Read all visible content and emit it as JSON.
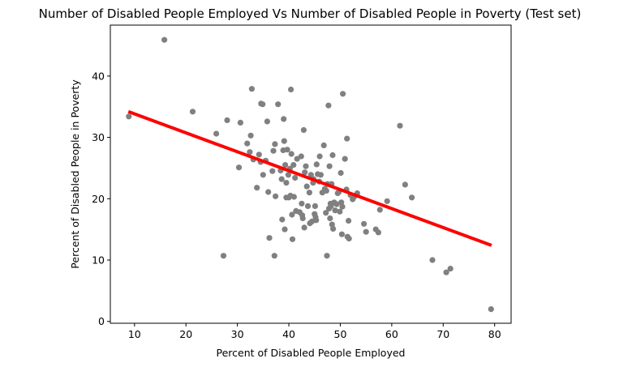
{
  "chart_data": {
    "type": "scatter",
    "title": "Number of Disabled People Employed Vs Number of Disabled People in Poverty (Test set)",
    "xlabel": "Percent of Disabled People Employed",
    "ylabel": "Percent of Disabled People in Poverty",
    "xlim": [
      5.3,
      83.2
    ],
    "ylim": [
      -0.3,
      48.3
    ],
    "xticks": [
      10,
      20,
      30,
      40,
      50,
      60,
      70,
      80
    ],
    "yticks": [
      0,
      10,
      20,
      30,
      40
    ],
    "grid": false,
    "legend": "none",
    "point_color": "#808080",
    "line_color": "#ff0000",
    "points": [
      {
        "x": 8.9,
        "y": 33.4
      },
      {
        "x": 15.8,
        "y": 45.9
      },
      {
        "x": 21.3,
        "y": 34.2
      },
      {
        "x": 25.9,
        "y": 30.6
      },
      {
        "x": 27.3,
        "y": 10.7
      },
      {
        "x": 28.0,
        "y": 32.8
      },
      {
        "x": 30.3,
        "y": 25.1
      },
      {
        "x": 30.6,
        "y": 32.4
      },
      {
        "x": 31.9,
        "y": 29.0
      },
      {
        "x": 32.4,
        "y": 27.6
      },
      {
        "x": 32.6,
        "y": 30.3
      },
      {
        "x": 32.8,
        "y": 37.9
      },
      {
        "x": 33.1,
        "y": 26.4
      },
      {
        "x": 33.8,
        "y": 21.8
      },
      {
        "x": 34.2,
        "y": 27.2
      },
      {
        "x": 34.5,
        "y": 26.0
      },
      {
        "x": 34.6,
        "y": 35.5
      },
      {
        "x": 34.9,
        "y": 35.4
      },
      {
        "x": 35.0,
        "y": 23.9
      },
      {
        "x": 35.5,
        "y": 26.2
      },
      {
        "x": 35.8,
        "y": 32.6
      },
      {
        "x": 36.0,
        "y": 21.1
      },
      {
        "x": 36.2,
        "y": 13.6
      },
      {
        "x": 36.8,
        "y": 24.5
      },
      {
        "x": 37.0,
        "y": 27.8
      },
      {
        "x": 37.3,
        "y": 28.9
      },
      {
        "x": 37.2,
        "y": 10.7
      },
      {
        "x": 37.4,
        "y": 20.4
      },
      {
        "x": 37.9,
        "y": 35.4
      },
      {
        "x": 38.4,
        "y": 24.6
      },
      {
        "x": 38.6,
        "y": 23.2
      },
      {
        "x": 38.7,
        "y": 16.6
      },
      {
        "x": 38.9,
        "y": 27.9
      },
      {
        "x": 39.0,
        "y": 33.0
      },
      {
        "x": 39.1,
        "y": 29.4
      },
      {
        "x": 39.2,
        "y": 15.0
      },
      {
        "x": 39.3,
        "y": 25.5
      },
      {
        "x": 39.5,
        "y": 22.6
      },
      {
        "x": 39.5,
        "y": 20.2
      },
      {
        "x": 39.7,
        "y": 28.0
      },
      {
        "x": 39.9,
        "y": 23.9
      },
      {
        "x": 40.0,
        "y": 20.2
      },
      {
        "x": 40.2,
        "y": 24.9
      },
      {
        "x": 40.3,
        "y": 20.5
      },
      {
        "x": 40.4,
        "y": 37.8
      },
      {
        "x": 40.5,
        "y": 27.3
      },
      {
        "x": 40.6,
        "y": 17.4
      },
      {
        "x": 40.7,
        "y": 13.4
      },
      {
        "x": 40.9,
        "y": 25.5
      },
      {
        "x": 41.0,
        "y": 20.3
      },
      {
        "x": 41.2,
        "y": 23.4
      },
      {
        "x": 41.4,
        "y": 18.0
      },
      {
        "x": 41.6,
        "y": 26.5
      },
      {
        "x": 42.1,
        "y": 17.8
      },
      {
        "x": 42.4,
        "y": 26.9
      },
      {
        "x": 42.5,
        "y": 19.2
      },
      {
        "x": 42.6,
        "y": 17.3
      },
      {
        "x": 42.7,
        "y": 16.8
      },
      {
        "x": 42.9,
        "y": 31.2
      },
      {
        "x": 43.0,
        "y": 15.3
      },
      {
        "x": 43.1,
        "y": 24.3
      },
      {
        "x": 43.3,
        "y": 25.3
      },
      {
        "x": 43.5,
        "y": 22.0
      },
      {
        "x": 43.7,
        "y": 18.8
      },
      {
        "x": 44.0,
        "y": 21.0
      },
      {
        "x": 44.1,
        "y": 16.0
      },
      {
        "x": 44.3,
        "y": 23.9
      },
      {
        "x": 44.5,
        "y": 16.3
      },
      {
        "x": 44.7,
        "y": 22.6
      },
      {
        "x": 44.8,
        "y": 23.2
      },
      {
        "x": 45.0,
        "y": 17.5
      },
      {
        "x": 45.1,
        "y": 18.8
      },
      {
        "x": 45.2,
        "y": 17.0
      },
      {
        "x": 45.3,
        "y": 16.5
      },
      {
        "x": 45.4,
        "y": 25.6
      },
      {
        "x": 45.6,
        "y": 24.0
      },
      {
        "x": 45.9,
        "y": 22.8
      },
      {
        "x": 46.0,
        "y": 26.9
      },
      {
        "x": 46.2,
        "y": 23.9
      },
      {
        "x": 46.5,
        "y": 21.0
      },
      {
        "x": 46.8,
        "y": 28.7
      },
      {
        "x": 47.0,
        "y": 21.6
      },
      {
        "x": 47.2,
        "y": 17.7
      },
      {
        "x": 47.3,
        "y": 21.3
      },
      {
        "x": 47.4,
        "y": 10.7
      },
      {
        "x": 47.5,
        "y": 22.4
      },
      {
        "x": 47.7,
        "y": 35.2
      },
      {
        "x": 47.8,
        "y": 18.4
      },
      {
        "x": 47.9,
        "y": 25.3
      },
      {
        "x": 48.0,
        "y": 16.8
      },
      {
        "x": 48.1,
        "y": 19.2
      },
      {
        "x": 48.2,
        "y": 18.8
      },
      {
        "x": 48.3,
        "y": 22.4
      },
      {
        "x": 48.4,
        "y": 15.8
      },
      {
        "x": 48.5,
        "y": 27.1
      },
      {
        "x": 48.6,
        "y": 15.1
      },
      {
        "x": 48.8,
        "y": 19.4
      },
      {
        "x": 49.0,
        "y": 18.1
      },
      {
        "x": 49.3,
        "y": 19.1
      },
      {
        "x": 49.5,
        "y": 20.9
      },
      {
        "x": 49.7,
        "y": 21.1
      },
      {
        "x": 49.9,
        "y": 17.9
      },
      {
        "x": 50.1,
        "y": 24.2
      },
      {
        "x": 50.2,
        "y": 19.4
      },
      {
        "x": 50.3,
        "y": 14.2
      },
      {
        "x": 50.4,
        "y": 18.7
      },
      {
        "x": 50.5,
        "y": 37.1
      },
      {
        "x": 50.9,
        "y": 26.5
      },
      {
        "x": 51.2,
        "y": 21.5
      },
      {
        "x": 51.3,
        "y": 29.8
      },
      {
        "x": 51.4,
        "y": 13.8
      },
      {
        "x": 51.6,
        "y": 16.4
      },
      {
        "x": 51.7,
        "y": 13.5
      },
      {
        "x": 52.0,
        "y": 20.6
      },
      {
        "x": 52.4,
        "y": 19.9
      },
      {
        "x": 52.7,
        "y": 20.3
      },
      {
        "x": 53.3,
        "y": 20.9
      },
      {
        "x": 54.6,
        "y": 15.9
      },
      {
        "x": 55.0,
        "y": 14.6
      },
      {
        "x": 56.9,
        "y": 15.0
      },
      {
        "x": 57.4,
        "y": 14.5
      },
      {
        "x": 57.7,
        "y": 18.2
      },
      {
        "x": 59.1,
        "y": 19.6
      },
      {
        "x": 61.6,
        "y": 31.9
      },
      {
        "x": 62.6,
        "y": 22.3
      },
      {
        "x": 63.9,
        "y": 20.2
      },
      {
        "x": 67.9,
        "y": 10.0
      },
      {
        "x": 70.6,
        "y": 8.0
      },
      {
        "x": 71.4,
        "y": 8.6
      },
      {
        "x": 79.3,
        "y": 2.0
      }
    ],
    "regression_line": {
      "x": [
        8.8,
        79.4
      ],
      "y": [
        34.2,
        12.4
      ]
    }
  }
}
